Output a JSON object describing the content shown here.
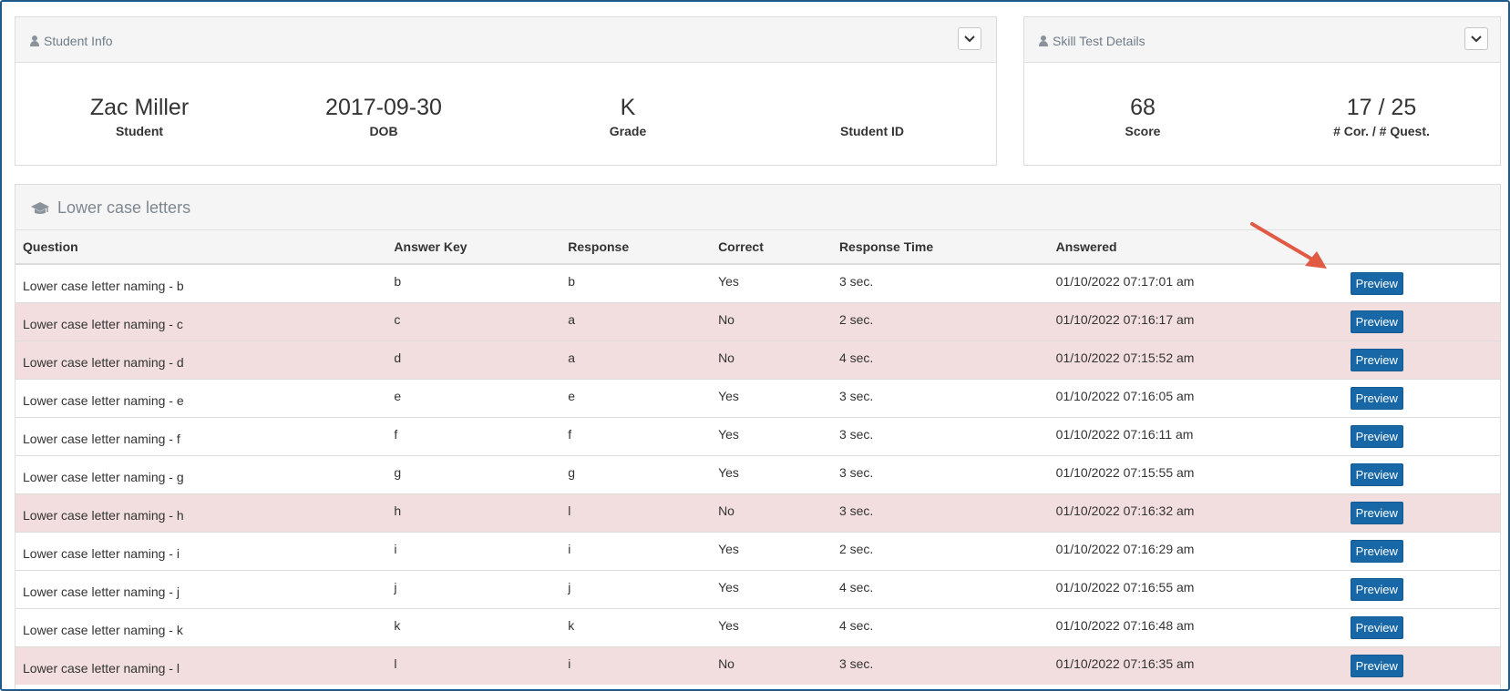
{
  "student_info": {
    "title": "Student Info",
    "fields": [
      {
        "value": "Zac Miller",
        "label": "Student"
      },
      {
        "value": "2017-09-30",
        "label": "DOB"
      },
      {
        "value": "K",
        "label": "Grade"
      },
      {
        "value": "",
        "label": "Student ID"
      }
    ]
  },
  "skill_test": {
    "title": "Skill Test Details",
    "fields": [
      {
        "value": "68",
        "label": "Score"
      },
      {
        "value": "17 / 25",
        "label": "# Cor. / # Quest."
      }
    ]
  },
  "section": {
    "title": "Lower case letters",
    "columns": [
      "Question",
      "Answer Key",
      "Response",
      "Correct",
      "Response Time",
      "Answered",
      ""
    ],
    "preview_label": "Preview",
    "rows": [
      {
        "question": "Lower case letter naming - b",
        "key": "b",
        "response": "b",
        "correct": "Yes",
        "time": "3 sec.",
        "answered": "01/10/2022 07:17:01 am"
      },
      {
        "question": "Lower case letter naming - c",
        "key": "c",
        "response": "a",
        "correct": "No",
        "time": "2 sec.",
        "answered": "01/10/2022 07:16:17 am"
      },
      {
        "question": "Lower case letter naming - d",
        "key": "d",
        "response": "a",
        "correct": "No",
        "time": "4 sec.",
        "answered": "01/10/2022 07:15:52 am"
      },
      {
        "question": "Lower case letter naming - e",
        "key": "e",
        "response": "e",
        "correct": "Yes",
        "time": "3 sec.",
        "answered": "01/10/2022 07:16:05 am"
      },
      {
        "question": "Lower case letter naming - f",
        "key": "f",
        "response": "f",
        "correct": "Yes",
        "time": "3 sec.",
        "answered": "01/10/2022 07:16:11 am"
      },
      {
        "question": "Lower case letter naming - g",
        "key": "g",
        "response": "g",
        "correct": "Yes",
        "time": "3 sec.",
        "answered": "01/10/2022 07:15:55 am"
      },
      {
        "question": "Lower case letter naming - h",
        "key": "h",
        "response": "l",
        "correct": "No",
        "time": "3 sec.",
        "answered": "01/10/2022 07:16:32 am"
      },
      {
        "question": "Lower case letter naming - i",
        "key": "i",
        "response": "i",
        "correct": "Yes",
        "time": "2 sec.",
        "answered": "01/10/2022 07:16:29 am"
      },
      {
        "question": "Lower case letter naming - j",
        "key": "j",
        "response": "j",
        "correct": "Yes",
        "time": "4 sec.",
        "answered": "01/10/2022 07:16:55 am"
      },
      {
        "question": "Lower case letter naming - k",
        "key": "k",
        "response": "k",
        "correct": "Yes",
        "time": "4 sec.",
        "answered": "01/10/2022 07:16:48 am"
      },
      {
        "question": "Lower case letter naming - l",
        "key": "l",
        "response": "i",
        "correct": "No",
        "time": "3 sec.",
        "answered": "01/10/2022 07:16:35 am"
      }
    ]
  },
  "colors": {
    "preview_button": "#1867a6",
    "incorrect_row": "#f2dede",
    "annotation_arrow": "#e05a44"
  },
  "icons": {
    "panel": "user-icon",
    "section": "graduation-cap-icon",
    "collapse": "chevron-down-icon"
  }
}
